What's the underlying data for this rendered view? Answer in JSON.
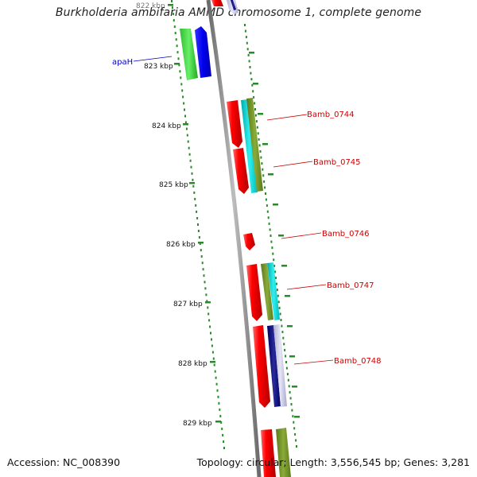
{
  "title": "Burkholderia ambifaria AMMD chromosome 1, complete genome",
  "footer": {
    "accession": "Accession: NC_008390",
    "stats": "Topology: circular; Length: 3,556,545 bp; Genes: 3,281"
  },
  "tick_labels": [
    "822 kbp",
    "823 kbp",
    "824 kbp",
    "825 kbp",
    "826 kbp",
    "827 kbp",
    "828 kbp",
    "829 kbp"
  ],
  "gene_labels": [
    {
      "name": "apaH",
      "color": "#0000cc"
    },
    {
      "name": "Bamb_0744",
      "color": "#cc0000"
    },
    {
      "name": "Bamb_0745",
      "color": "#cc0000"
    },
    {
      "name": "Bamb_0746",
      "color": "#cc0000"
    },
    {
      "name": "Bamb_0747",
      "color": "#cc0000"
    },
    {
      "name": "Bamb_0748",
      "color": "#cc0000"
    }
  ],
  "colors": {
    "red": "#e60000",
    "green": "#33cc33",
    "blue": "#0000ee",
    "cyan": "#00cccc",
    "olive": "#7a9a2a",
    "navy": "#000080",
    "lavender": "#c0c0dc",
    "axis": "#8a8a8a",
    "dotted": "#2a8a2a"
  }
}
